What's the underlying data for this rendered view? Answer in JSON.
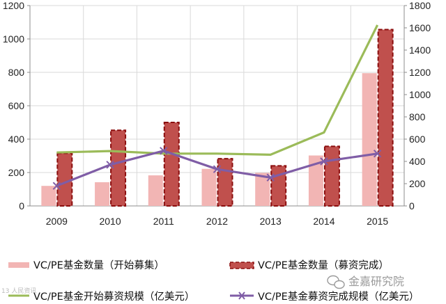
{
  "chart_data": {
    "type": "bar",
    "categories": [
      "2009",
      "2010",
      "2011",
      "2012",
      "2013",
      "2014",
      "2015"
    ],
    "left_axis": {
      "min": 0,
      "max": 1200,
      "ticks": [
        0,
        200,
        400,
        600,
        800,
        1000,
        1200
      ]
    },
    "right_axis": {
      "min": 0,
      "max": 1800,
      "ticks": [
        0,
        200,
        400,
        600,
        800,
        1000,
        1200,
        1400,
        1600,
        1800
      ]
    },
    "series": [
      {
        "name": "VC/PE基金数量（开始募集）",
        "kind": "bar",
        "axis": "left",
        "color": "#f2b5b4",
        "values": [
          120,
          142,
          183,
          222,
          198,
          302,
          795
        ]
      },
      {
        "name": "VC/PE基金数量（募资完成）",
        "kind": "bar",
        "axis": "left",
        "color": "#c0504d",
        "edge": "#8b0e0e",
        "values": [
          315,
          453,
          500,
          283,
          240,
          357,
          1056
        ]
      },
      {
        "name": "VC/PE基金开始募资规模（亿美元）",
        "kind": "line",
        "axis": "right",
        "color": "#9bbb59",
        "values": [
          480,
          493,
          470,
          470,
          460,
          660,
          1625
        ]
      },
      {
        "name": "VC/PE基金募资完成规模（亿美元）",
        "kind": "line",
        "axis": "right",
        "color": "#7f5da6",
        "marker": "x",
        "values": [
          180,
          370,
          495,
          330,
          255,
          400,
          470
        ]
      }
    ],
    "legend_position": "bottom",
    "grid": true
  },
  "watermark": {
    "text": "金嘉研究院",
    "icon": "wechat-icon",
    "corner_text": "13 人民资讯"
  }
}
